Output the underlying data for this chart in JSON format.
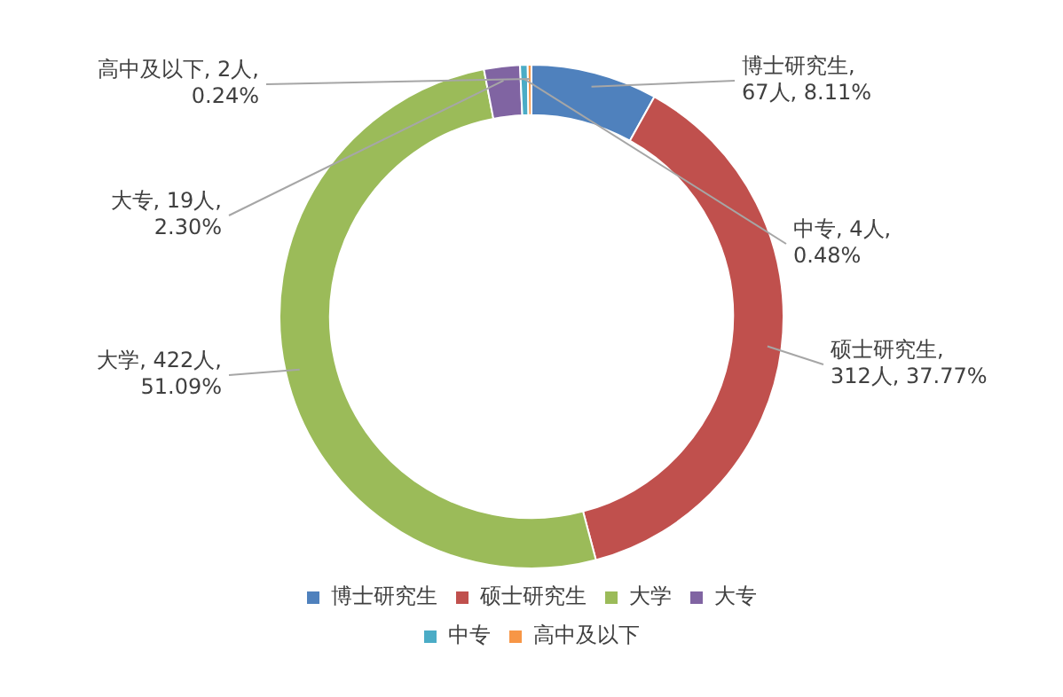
{
  "chart_data": {
    "type": "donut",
    "categories": [
      "博士研究生",
      "硕士研究生",
      "大学",
      "大专",
      "中专",
      "高中及以下"
    ],
    "values": [
      67,
      312,
      422,
      19,
      4,
      2
    ],
    "colors": [
      "#4f81bd",
      "#c0504d",
      "#9bbb59",
      "#8064a2",
      "#4bacc6",
      "#f79646"
    ],
    "value_labels": [
      "博士研究生, 67人, 8.11%",
      "硕士研究生, 312人, 37.77%",
      "大学, 422人, 51.09%",
      "大专, 19人, 2.30%",
      "中专, 4人, 0.48%",
      "高中及以下, 2人, 0.24%"
    ],
    "legend": "bottom"
  }
}
